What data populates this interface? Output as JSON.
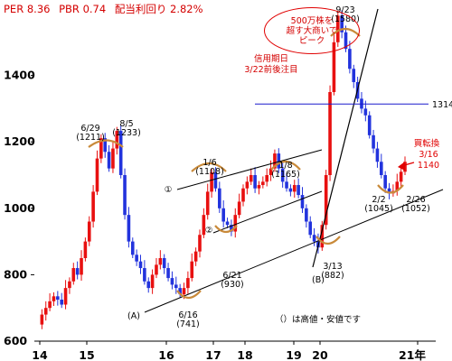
{
  "header": {
    "per": "PER 8.36",
    "pbr": "PBR 0.74",
    "yield": "配当利回り 2.82%"
  },
  "bubble_note": [
    "500万株を",
    "超す大商いで",
    "ピーク"
  ],
  "credit_note": [
    "信用期日",
    "3/22前後注目"
  ],
  "buy_note": [
    "買転換",
    "3/16",
    "1140"
  ],
  "level_line": {
    "value": 1314,
    "label": "1314",
    "color": "#1a1acc"
  },
  "footer_note": "（）は高値・安値です",
  "colors": {
    "up": "#e81010",
    "down": "#2233dd",
    "accent": "#d40000"
  },
  "chart_data": {
    "type": "candlestick",
    "title": "",
    "xlabel": "",
    "ylabel": "",
    "ylim": [
      600,
      1600
    ],
    "yticks": [
      600,
      800,
      1000,
      1200,
      1400
    ],
    "x_tick_labels": [
      "14",
      "15",
      "16",
      "17",
      "18",
      "19",
      "20",
      "21年"
    ],
    "annotations": [
      {
        "label": "6/29",
        "sub": "(1211)"
      },
      {
        "label": "8/5",
        "sub": "(1233)"
      },
      {
        "label": "6/16",
        "sub": "(741)"
      },
      {
        "label": "1/6",
        "sub": "(1108)"
      },
      {
        "label": "6/21",
        "sub": "(930)"
      },
      {
        "label": "1/8",
        "sub": "(1165)"
      },
      {
        "label": "9/23",
        "sub": "(1580)"
      },
      {
        "label": "3/13",
        "sub": "(882)"
      },
      {
        "label": "2/2",
        "sub": "(1045)"
      },
      {
        "label": "2/26",
        "sub": "(1052)"
      }
    ],
    "trendline_labels": [
      "①",
      "②",
      "(A)",
      "(B)"
    ],
    "series": [
      {
        "kind": "approx_weekly_close",
        "values": [
          650,
          680,
          700,
          720,
          735,
          725,
          710,
          760,
          780,
          820,
          800,
          850,
          900,
          960,
          1050,
          1150,
          1211,
          1170,
          1120,
          1180,
          1233,
          1100,
          980,
          900,
          860,
          840,
          820,
          780,
          760,
          800,
          830,
          850,
          820,
          790,
          770,
          760,
          741,
          760,
          790,
          840,
          870,
          920,
          980,
          1050,
          1108,
          1060,
          1000,
          960,
          950,
          930,
          980,
          1020,
          1060,
          1080,
          1100,
          1060,
          1070,
          1080,
          1100,
          1120,
          1165,
          1120,
          1080,
          1060,
          1050,
          1070,
          1040,
          1000,
          960,
          920,
          900,
          882,
          950,
          1100,
          1350,
          1500,
          1580,
          1530,
          1480,
          1420,
          1380,
          1330,
          1300,
          1280,
          1220,
          1180,
          1140,
          1100,
          1060,
          1045,
          1052,
          1080,
          1110,
          1140
        ]
      }
    ]
  }
}
